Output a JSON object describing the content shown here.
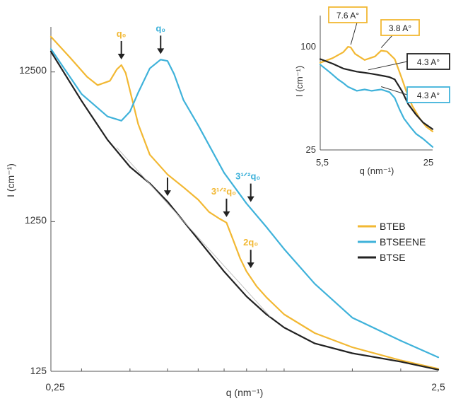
{
  "colors": {
    "BTEB": "#F2B833",
    "BTSEENE": "#3FB2DA",
    "BTSE": "#222222",
    "axis": "#555555",
    "arrow": "#222222"
  },
  "chart_data": [
    {
      "type": "line",
      "title": "",
      "xlabel": "q (nm⁻¹)",
      "ylabel": "I (cm⁻¹)",
      "xscale": "log",
      "yscale": "log",
      "xlim": [
        0.25,
        2.5
      ],
      "ylim": [
        125,
        25000
      ],
      "xtick_labels": [
        "0,25",
        "2,5"
      ],
      "yticks": [
        125,
        1250,
        12500
      ],
      "ytick_labels": [
        "125",
        "1250",
        "12500"
      ],
      "grid": false,
      "legend": "right",
      "series": [
        {
          "name": "BTEB",
          "color": "#F2B833",
          "x": [
            0.25,
            0.28,
            0.31,
            0.33,
            0.355,
            0.37,
            0.38,
            0.39,
            0.42,
            0.45,
            0.5,
            0.55,
            0.6,
            0.64,
            0.68,
            0.71,
            0.74,
            0.77,
            0.8,
            0.85,
            0.9,
            1.0,
            1.2,
            1.5,
            2.0,
            2.5
          ],
          "y": [
            21500,
            15600,
            11600,
            10200,
            10900,
            13000,
            13900,
            12300,
            5600,
            3500,
            2580,
            2120,
            1750,
            1450,
            1310,
            1230,
            930,
            710,
            580,
            460,
            390,
            300,
            225,
            181,
            148,
            130
          ]
        },
        {
          "name": "BTSEENE",
          "color": "#3FB2DA",
          "x": [
            0.25,
            0.3,
            0.35,
            0.38,
            0.4,
            0.42,
            0.45,
            0.48,
            0.5,
            0.52,
            0.55,
            0.6,
            0.7,
            0.8,
            0.9,
            1.0,
            1.2,
            1.5,
            2.0,
            2.5
          ],
          "y": [
            17800,
            8900,
            6300,
            5900,
            6800,
            9100,
            13200,
            15100,
            14800,
            12100,
            8100,
            5500,
            2650,
            1650,
            1150,
            820,
            480,
            285,
            200,
            155
          ]
        },
        {
          "name": "BTSE",
          "color": "#222222",
          "x": [
            0.25,
            0.3,
            0.35,
            0.4,
            0.45,
            0.5,
            0.6,
            0.7,
            0.8,
            0.9,
            1.0,
            1.2,
            1.5,
            2.0,
            2.5
          ],
          "y": [
            17100,
            8000,
            4400,
            2900,
            2250,
            1700,
            950,
            580,
            395,
            300,
            245,
            192,
            165,
            145,
            128
          ]
        },
        {
          "name": "",
          "color": "#BBBBBB",
          "stroke_width": 0.9,
          "x": [
            0.37,
            0.92
          ],
          "y": [
            3900,
            290
          ]
        }
      ],
      "annotations": [
        {
          "text": "q₀",
          "color": "#F2B833",
          "arrow_x": 0.38,
          "arrow_y": 13900
        },
        {
          "text": "q₀",
          "color": "#3FB2DA",
          "arrow_x": 0.48,
          "arrow_y": 15100
        },
        {
          "text": "",
          "color": "#222222",
          "arrow_x": 0.5,
          "arrow_y": 1700
        },
        {
          "text": "3¹ᐟ²q₀",
          "color": "#F2B833",
          "arrow_x": 0.71,
          "arrow_y": 1230
        },
        {
          "text": "3¹ᐟ²q₀",
          "color": "#3FB2DA",
          "arrow_x": 0.82,
          "arrow_y": 1550
        },
        {
          "text": "2q₀",
          "color": "#F2B833",
          "arrow_x": 0.82,
          "arrow_y": 560
        }
      ]
    },
    {
      "type": "line",
      "title": "",
      "xlabel": "q (nm⁻¹)",
      "ylabel": "I (cm⁻¹)",
      "xscale": "log",
      "yscale": "log",
      "xlim": [
        5.5,
        25
      ],
      "ylim": [
        25,
        150
      ],
      "xtick_labels": [
        "5,5",
        "25"
      ],
      "yticks": [
        25,
        100
      ],
      "ytick_labels": [
        "25",
        "100"
      ],
      "grid": false,
      "series": [
        {
          "name": "BTEB",
          "color": "#F2B833",
          "x": [
            5.5,
            6.5,
            7.5,
            8.0,
            8.3,
            8.8,
            10.0,
            11.5,
            12.5,
            13.5,
            15.0,
            16.5,
            17.5,
            19.0,
            21.0,
            23.0,
            25.0
          ],
          "y": [
            80,
            85,
            92,
            99,
            98,
            90,
            83,
            87,
            94,
            93,
            84,
            65,
            55,
            45,
            38,
            34,
            32
          ]
        },
        {
          "name": "BTSE",
          "color": "#222222",
          "x": [
            5.5,
            6.5,
            7.5,
            9.0,
            10.0,
            11.0,
            12.0,
            13.0,
            14.0,
            15.0,
            16.5,
            18.0,
            20.0,
            22.0,
            25.0
          ],
          "y": [
            84,
            79,
            74,
            71,
            70,
            69,
            68,
            67,
            66,
            64,
            55,
            46,
            40,
            36,
            33
          ]
        },
        {
          "name": "BTSEENE",
          "color": "#3FB2DA",
          "x": [
            5.5,
            6.3,
            7.0,
            7.5,
            8.0,
            9.0,
            10.0,
            11.0,
            12.5,
            14.0,
            15.0,
            16.0,
            17.0,
            18.5,
            20.0,
            22.0,
            25.0
          ],
          "y": [
            78,
            70,
            64,
            61,
            58,
            55,
            56,
            55,
            56,
            54,
            50,
            43,
            38,
            34,
            31,
            29,
            26
          ]
        }
      ],
      "annotations": [
        {
          "text": "7.6 A°",
          "color": "#F2B833",
          "target_x": 8.3,
          "target_y": 98
        },
        {
          "text": "3.8 A°",
          "color": "#F2B833",
          "target_x": 12.5,
          "target_y": 94
        },
        {
          "text": "4.3 A°",
          "color": "#222222",
          "target_x": 10.5,
          "target_y": 70
        },
        {
          "text": "4.3 A°",
          "color": "#3FB2DA",
          "target_x": 12.5,
          "target_y": 56
        }
      ]
    }
  ]
}
